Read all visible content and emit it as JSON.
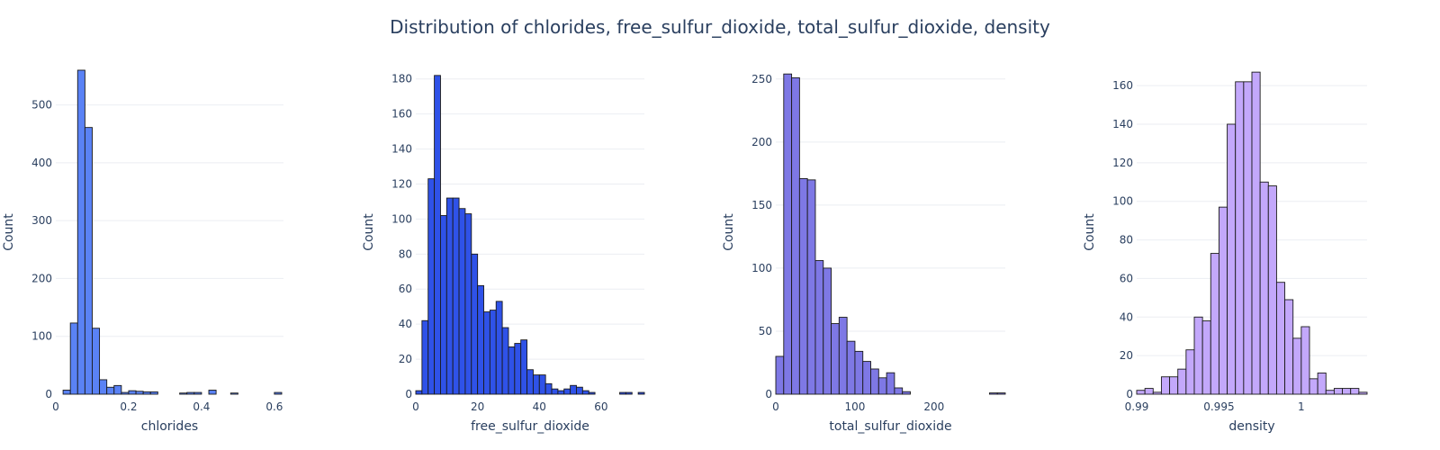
{
  "title": "Distribution of chlorides, free_sulfur_dioxide, total_sulfur_dioxide, density",
  "chart_data": [
    {
      "type": "bar",
      "subtype": "histogram",
      "xlabel": "chlorides",
      "ylabel": "Count",
      "color": "#5a82f5",
      "xlim": [
        0,
        0.625
      ],
      "ylim": [
        0,
        560
      ],
      "xticks": [
        0,
        0.2,
        0.4,
        0.6
      ],
      "xtick_labels": [
        "0",
        "0.2",
        "0.4",
        "0.6"
      ],
      "yticks": [
        0,
        100,
        200,
        300,
        400,
        500
      ],
      "bin_start": 0.0,
      "bin_width": 0.02,
      "values": [
        0,
        7,
        123,
        560,
        461,
        114,
        25,
        12,
        15,
        3,
        6,
        5,
        4,
        4,
        0,
        0,
        0,
        2,
        3,
        3,
        0,
        7,
        0,
        0,
        2,
        0,
        0,
        0,
        0,
        0,
        3
      ]
    },
    {
      "type": "bar",
      "subtype": "histogram",
      "xlabel": "free_sulfur_dioxide",
      "ylabel": "Count",
      "color": "#2f52e8",
      "xlim": [
        0,
        74
      ],
      "ylim": [
        0,
        185
      ],
      "xticks": [
        0,
        20,
        40,
        60
      ],
      "xtick_labels": [
        "0",
        "20",
        "40",
        "60"
      ],
      "yticks": [
        0,
        20,
        40,
        60,
        80,
        100,
        120,
        140,
        160,
        180
      ],
      "bin_start": 0,
      "bin_width": 2,
      "values": [
        2,
        42,
        123,
        182,
        102,
        112,
        112,
        106,
        103,
        80,
        62,
        47,
        48,
        53,
        38,
        27,
        29,
        31,
        14,
        11,
        11,
        6,
        3,
        2,
        3,
        5,
        4,
        2,
        1,
        0,
        0,
        0,
        0,
        1,
        1,
        0,
        1
      ]
    },
    {
      "type": "bar",
      "subtype": "histogram",
      "xlabel": "total_sulfur_dioxide",
      "ylabel": "Count",
      "color": "#7e78e5",
      "xlim": [
        0,
        290
      ],
      "ylim": [
        0,
        257
      ],
      "xticks": [
        0,
        100,
        200
      ],
      "xtick_labels": [
        "0",
        "100",
        "200"
      ],
      "yticks": [
        0,
        50,
        100,
        150,
        200,
        250
      ],
      "bin_start": 0,
      "bin_width": 10,
      "values": [
        30,
        254,
        251,
        171,
        170,
        106,
        100,
        56,
        61,
        42,
        34,
        26,
        20,
        13,
        17,
        5,
        2,
        0,
        0,
        0,
        0,
        0,
        0,
        0,
        0,
        0,
        0,
        1,
        1
      ]
    },
    {
      "type": "bar",
      "subtype": "histogram",
      "xlabel": "density",
      "ylabel": "Count",
      "color": "#c3a8fb",
      "xlim": [
        0.99,
        1.004
      ],
      "ylim": [
        0,
        168
      ],
      "xticks": [
        0.99,
        0.995,
        1
      ],
      "xtick_labels": [
        "0.99",
        "0.995",
        "1"
      ],
      "yticks": [
        0,
        20,
        40,
        60,
        80,
        100,
        120,
        140,
        160
      ],
      "bin_start": 0.99,
      "bin_width": 0.0005,
      "values": [
        2,
        3,
        1,
        9,
        9,
        13,
        23,
        40,
        38,
        73,
        97,
        140,
        162,
        162,
        167,
        110,
        108,
        58,
        49,
        29,
        35,
        8,
        11,
        2,
        3,
        3,
        3,
        1
      ]
    }
  ]
}
